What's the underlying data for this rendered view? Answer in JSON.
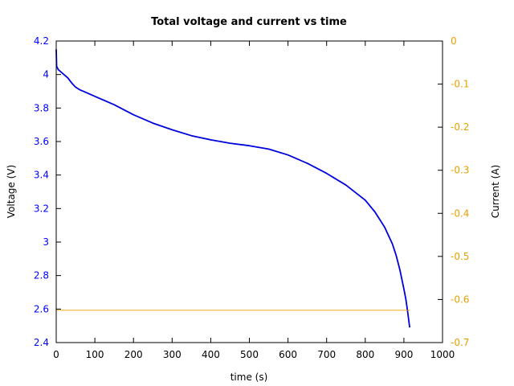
{
  "chart_data": {
    "type": "line",
    "title": "Total voltage and current vs time",
    "xlabel": "time (s)",
    "ylabel": "Voltage (V)",
    "y2label": "Current (A)",
    "xlim": [
      0,
      1000
    ],
    "ylim": [
      2.4,
      4.2
    ],
    "y2lim": [
      -0.7,
      0
    ],
    "grid": false,
    "xticks": [
      "0",
      "100",
      "200",
      "300",
      "400",
      "500",
      "600",
      "700",
      "800",
      "900",
      "1000"
    ],
    "yticks": [
      "2.4",
      "2.6",
      "2.8",
      "3",
      "3.2",
      "3.4",
      "3.6",
      "3.8",
      "4",
      "4.2"
    ],
    "y2ticks": [
      "-0.7",
      "-0.6",
      "-0.5",
      "-0.4",
      "-0.3",
      "-0.2",
      "-0.1",
      "0"
    ],
    "colors": {
      "voltage": "#0000dd",
      "current": "#e8a000",
      "left_axis_text": "#0000ff",
      "right_axis_text": "#e8a000"
    },
    "series": [
      {
        "axis": "left",
        "x": [
          0,
          1,
          5,
          10,
          20,
          30,
          40,
          50,
          60,
          80,
          100,
          150,
          200,
          250,
          300,
          350,
          400,
          450,
          500,
          550,
          600,
          650,
          700,
          750,
          800,
          825,
          850,
          870,
          880,
          890,
          900,
          905,
          910,
          915
        ],
        "y": [
          4.15,
          4.05,
          4.03,
          4.02,
          4.0,
          3.98,
          3.95,
          3.925,
          3.91,
          3.89,
          3.87,
          3.82,
          3.76,
          3.71,
          3.67,
          3.635,
          3.61,
          3.59,
          3.575,
          3.555,
          3.52,
          3.47,
          3.41,
          3.34,
          3.25,
          3.18,
          3.09,
          2.99,
          2.92,
          2.83,
          2.72,
          2.66,
          2.58,
          2.49
        ]
      },
      {
        "axis": "right",
        "x": [
          0,
          915
        ],
        "y": [
          -0.625,
          -0.625
        ]
      }
    ]
  }
}
